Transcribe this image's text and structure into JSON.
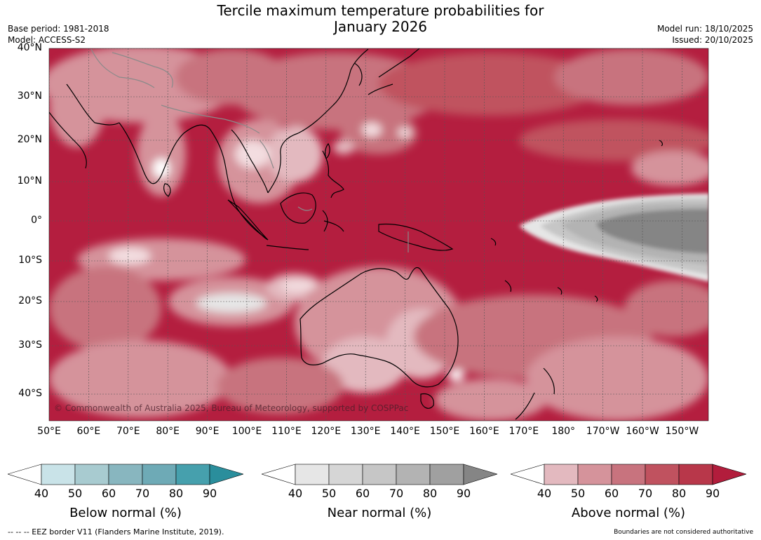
{
  "title_line1": "Tercile maximum temperature probabilities for",
  "title_line2": "January 2026",
  "base_period": "Base period: 1981-2018",
  "model": "Model: ACCESS-S2",
  "model_run": "Model run: 18/10/2025",
  "issued": "Issued: 20/10/2025",
  "copyright": "© Commonwealth of Australia 2025, Bureau of Meteorology, supported by COSPPac",
  "lat_labels": [
    "40°N",
    "30°N",
    "20°N",
    "10°N",
    "0°",
    "10°S",
    "20°S",
    "30°S",
    "40°S"
  ],
  "lon_labels": [
    "50°E",
    "60°E",
    "70°E",
    "80°E",
    "90°E",
    "100°E",
    "110°E",
    "120°E",
    "130°E",
    "140°E",
    "150°E",
    "160°E",
    "170°E",
    "180°",
    "170°W",
    "160°W",
    "150°W"
  ],
  "colorbars": [
    {
      "label": "Below normal (%)",
      "ticks": [
        "40",
        "50",
        "60",
        "70",
        "80",
        "90"
      ],
      "colors": [
        "#ffffff",
        "#c9e3e8",
        "#a8cbd0",
        "#88b6bf",
        "#6eaab6",
        "#46a0ad",
        "#2a8e9c"
      ]
    },
    {
      "label": "Near normal (%)",
      "ticks": [
        "40",
        "50",
        "60",
        "70",
        "80",
        "90"
      ],
      "colors": [
        "#ffffff",
        "#e6e6e6",
        "#d6d6d6",
        "#c6c6c6",
        "#b3b3b3",
        "#a0a0a0",
        "#858585"
      ]
    },
    {
      "label": "Above normal (%)",
      "ticks": [
        "40",
        "50",
        "60",
        "70",
        "80",
        "90"
      ],
      "colors": [
        "#ffffff",
        "#e3b9bf",
        "#d5939b",
        "#c8737e",
        "#c0525f",
        "#b8374a",
        "#b21d3c"
      ]
    }
  ],
  "footer_left": "--  --  -- EEZ border V11 (Flanders Marine Institute, 2019).",
  "footer_right": "Boundaries are not considered authoritative",
  "colors": {
    "above_strong": "#b41e3f",
    "above_mid": "#c8737e",
    "above_light": "#e3b9bf",
    "near_mid": "#c6c6c6",
    "near_strong": "#858585"
  }
}
